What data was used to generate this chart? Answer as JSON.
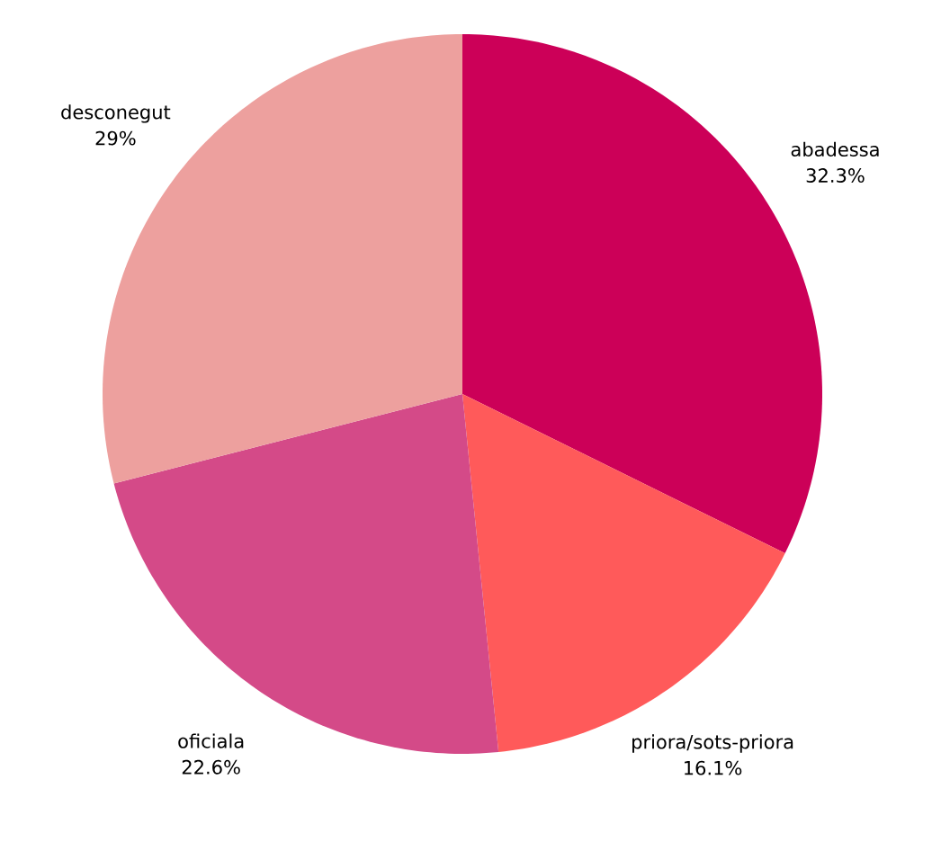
{
  "chart_data": {
    "type": "pie",
    "categories": [
      "abadessa",
      "priora/sots-priora",
      "oficiala",
      "desconegut"
    ],
    "values": [
      32.3,
      16.1,
      22.6,
      29
    ],
    "colors": [
      "#cc0058",
      "#ff5a5a",
      "#d44a88",
      "#eda09e"
    ],
    "value_labels": [
      "32.3%",
      "16.1%",
      "22.6%",
      "29%"
    ]
  }
}
